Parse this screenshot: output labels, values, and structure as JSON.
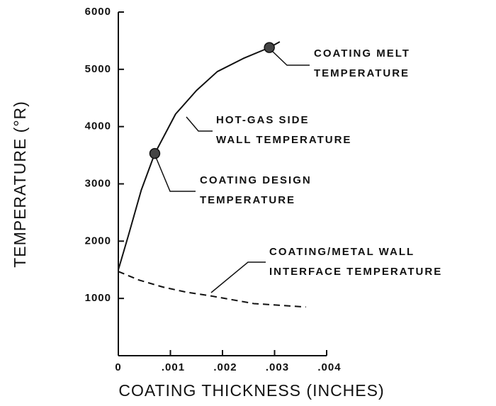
{
  "chart_data": {
    "type": "line",
    "xlabel": "COATING THICKNESS  (INCHES)",
    "ylabel": "TEMPERATURE  (°R)",
    "xlim": [
      0,
      0.004
    ],
    "ylim": [
      0,
      6000
    ],
    "xticks": [
      0,
      {
        "value": 0.001,
        "label": ".001"
      },
      {
        "value": 0.002,
        "label": ".002"
      },
      {
        "value": 0.003,
        "label": ".003"
      },
      {
        "value": 0.004,
        "label": ".004"
      }
    ],
    "yticks": [
      1000,
      2000,
      3000,
      4000,
      5000,
      6000
    ],
    "series": [
      {
        "name": "HOT-GAS SIDE WALL TEMPERATURE",
        "color": "#111111",
        "dash": false,
        "x": [
          0,
          0.0002,
          0.00044,
          0.0007,
          0.0011,
          0.0015,
          0.0019,
          0.0024,
          0.0029,
          0.0031
        ],
        "values": [
          1500,
          2120,
          2890,
          3530,
          4220,
          4630,
          4960,
          5190,
          5380,
          5480
        ]
      },
      {
        "name": "COATING/METAL WALL INTERFACE TEMPERATURE",
        "color": "#111111",
        "dash": true,
        "x": [
          0,
          0.0004,
          0.00085,
          0.0013,
          0.0018,
          0.0026,
          0.0036
        ],
        "values": [
          1470,
          1320,
          1200,
          1110,
          1040,
          910,
          850
        ]
      }
    ],
    "points": [
      {
        "x": 0.0007,
        "y": 3530
      },
      {
        "x": 0.0029,
        "y": 5380
      }
    ],
    "annotations": [
      [
        "COATING MELT",
        "TEMPERATURE"
      ],
      [
        "HOT-GAS SIDE",
        "WALL TEMPERATURE"
      ],
      [
        "COATING DESIGN",
        "TEMPERATURE"
      ],
      [
        "COATING/METAL WALL",
        "INTERFACE TEMPERATURE"
      ]
    ]
  }
}
